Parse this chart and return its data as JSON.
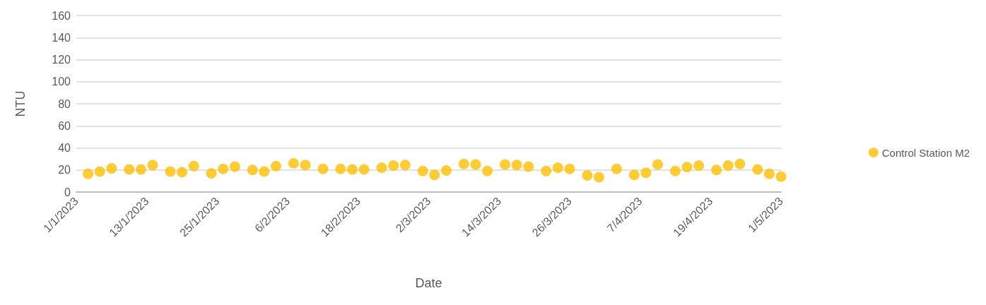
{
  "chart_data": {
    "type": "scatter",
    "xlabel": "Date",
    "ylabel": "NTU",
    "x": [
      "2023-01-03",
      "2023-01-05",
      "2023-01-07",
      "2023-01-10",
      "2023-01-12",
      "2023-01-14",
      "2023-01-17",
      "2023-01-19",
      "2023-01-21",
      "2023-01-24",
      "2023-01-26",
      "2023-01-28",
      "2023-01-31",
      "2023-02-02",
      "2023-02-04",
      "2023-02-07",
      "2023-02-09",
      "2023-02-12",
      "2023-02-15",
      "2023-02-17",
      "2023-02-19",
      "2023-02-22",
      "2023-02-24",
      "2023-02-26",
      "2023-03-01",
      "2023-03-03",
      "2023-03-05",
      "2023-03-08",
      "2023-03-10",
      "2023-03-12",
      "2023-03-15",
      "2023-03-17",
      "2023-03-19",
      "2023-03-22",
      "2023-03-24",
      "2023-03-26",
      "2023-03-29",
      "2023-03-31",
      "2023-04-03",
      "2023-04-06",
      "2023-04-08",
      "2023-04-10",
      "2023-04-13",
      "2023-04-15",
      "2023-04-17",
      "2023-04-20",
      "2023-04-22",
      "2023-04-24",
      "2023-04-27",
      "2023-04-29",
      "2023-05-01"
    ],
    "series": [
      {
        "name": "Control Station M2",
        "color": "#ffc000",
        "values": [
          16.5,
          18.5,
          21.5,
          20.5,
          20.5,
          24.5,
          18.5,
          18,
          23.5,
          17,
          21,
          23,
          20,
          18.5,
          23.5,
          26,
          24.5,
          21,
          21,
          20.5,
          20.5,
          22,
          24,
          24.5,
          19,
          15.5,
          19.5,
          25.5,
          25,
          19,
          25,
          24.5,
          23,
          19,
          22,
          21,
          15,
          13.5,
          21,
          15.5,
          17.5,
          25,
          19,
          22.5,
          24,
          20,
          24,
          25.5,
          20.5,
          16.5,
          14
        ]
      }
    ],
    "xlim": [
      "2023-01-01",
      "2023-05-01"
    ],
    "xticks": [
      {
        "value": "2023-01-01",
        "label": "1/1/2023"
      },
      {
        "value": "2023-01-13",
        "label": "13/1/2023"
      },
      {
        "value": "2023-01-25",
        "label": "25/1/2023"
      },
      {
        "value": "2023-02-06",
        "label": "6/2/2023"
      },
      {
        "value": "2023-02-18",
        "label": "18/2/2023"
      },
      {
        "value": "2023-03-02",
        "label": "2/3/2023"
      },
      {
        "value": "2023-03-14",
        "label": "14/3/2023"
      },
      {
        "value": "2023-03-26",
        "label": "26/3/2023"
      },
      {
        "value": "2023-04-07",
        "label": "7/4/2023"
      },
      {
        "value": "2023-04-19",
        "label": "19/4/2023"
      },
      {
        "value": "2023-05-01",
        "label": "1/5/2023"
      }
    ],
    "ylim": [
      0,
      160
    ],
    "yticks": [
      0,
      20,
      40,
      60,
      80,
      100,
      120,
      140,
      160
    ],
    "grid": "y",
    "legend": "right",
    "marker": "circle"
  }
}
